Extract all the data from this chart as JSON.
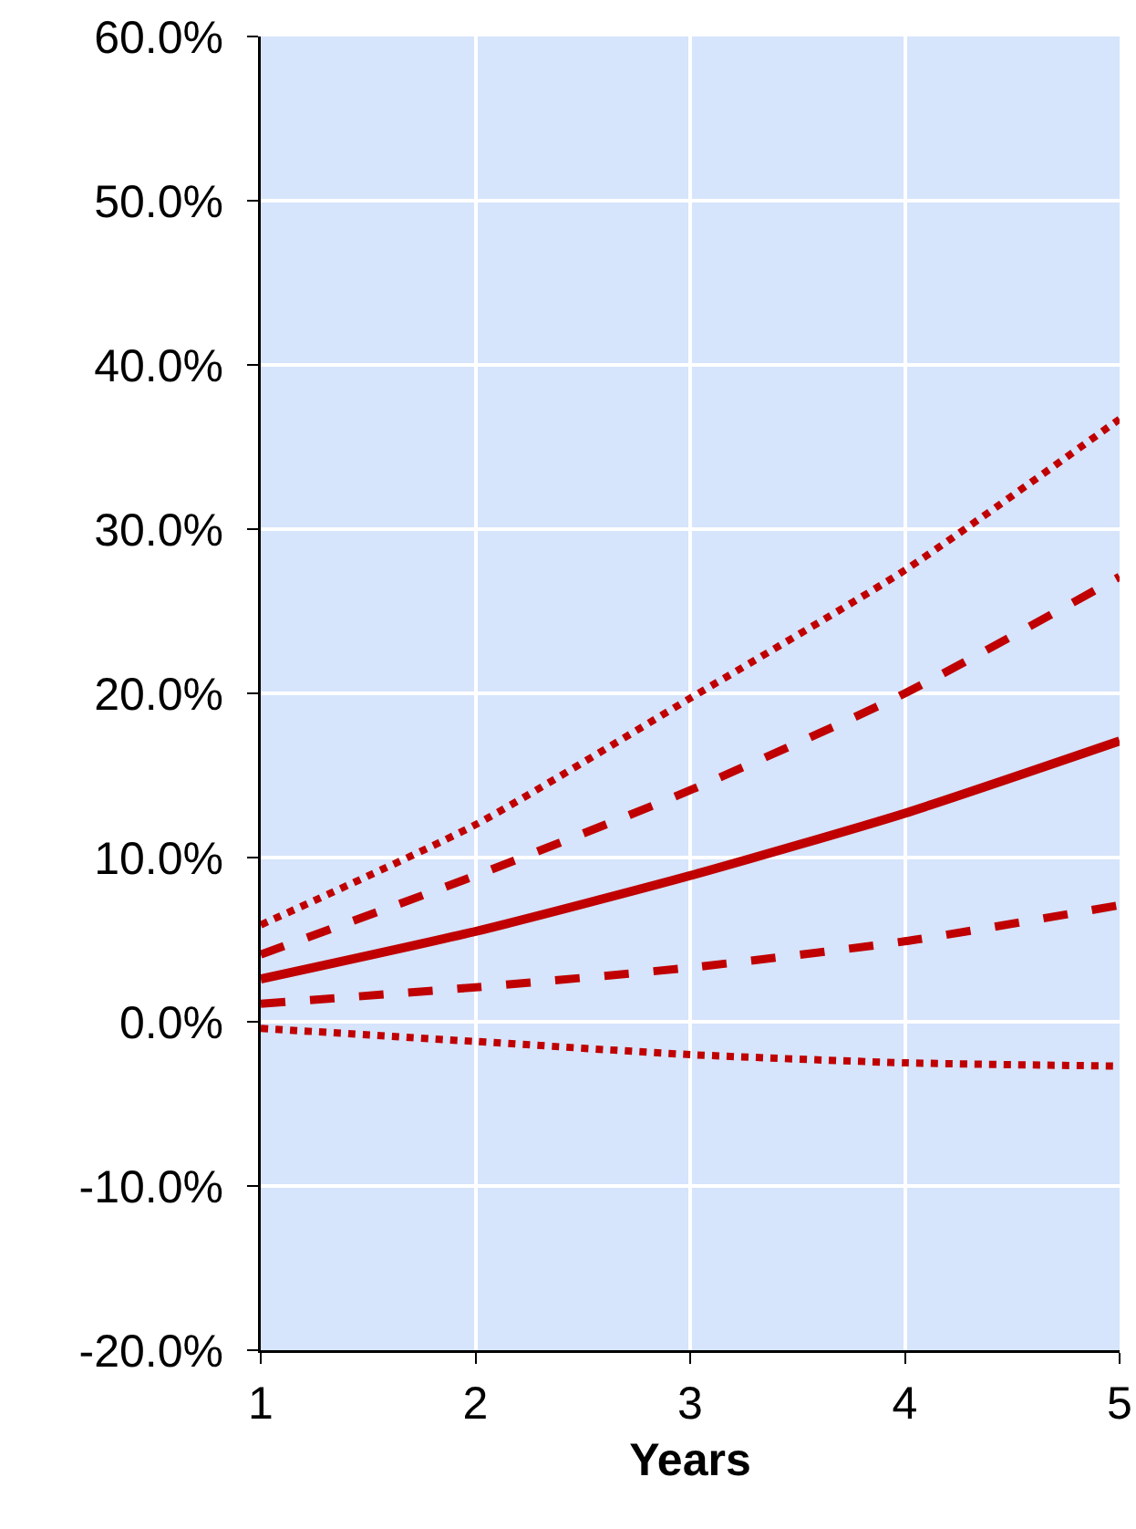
{
  "chart_data": {
    "type": "line",
    "xlabel": "Years",
    "x": [
      1,
      2,
      3,
      4,
      5
    ],
    "xlim": [
      1,
      5
    ],
    "xticks": [
      1,
      2,
      3,
      4,
      5
    ],
    "ylim": [
      -20,
      60
    ],
    "yticks": [
      {
        "value": -20,
        "label": "-20.0%"
      },
      {
        "value": -10,
        "label": "-10.0%"
      },
      {
        "value": 0,
        "label": "0.0%"
      },
      {
        "value": 10,
        "label": "10.0%"
      },
      {
        "value": 20,
        "label": "20.0%"
      },
      {
        "value": 30,
        "label": "30.0%"
      },
      {
        "value": 40,
        "label": "40.0%"
      },
      {
        "value": 50,
        "label": "50.0%"
      },
      {
        "value": 60,
        "label": "60.0%"
      }
    ],
    "grid": true,
    "marker": "none",
    "series": [
      {
        "color": "#c00000",
        "line_style": "dotted",
        "values": [
          5.9,
          12.0,
          19.7,
          27.5,
          36.7
        ]
      },
      {
        "color": "#c00000",
        "line_style": "dashed",
        "values": [
          4.1,
          8.9,
          14.1,
          20.0,
          27.1
        ]
      },
      {
        "color": "#c00000",
        "line_style": "solid",
        "values": [
          2.6,
          5.5,
          8.9,
          12.7,
          17.1
        ]
      },
      {
        "color": "#c00000",
        "line_style": "dashed",
        "values": [
          1.1,
          2.1,
          3.3,
          4.9,
          7.1
        ]
      },
      {
        "color": "#c00000",
        "line_style": "dotted",
        "values": [
          -0.4,
          -1.2,
          -2.0,
          -2.5,
          -2.7
        ]
      }
    ]
  }
}
